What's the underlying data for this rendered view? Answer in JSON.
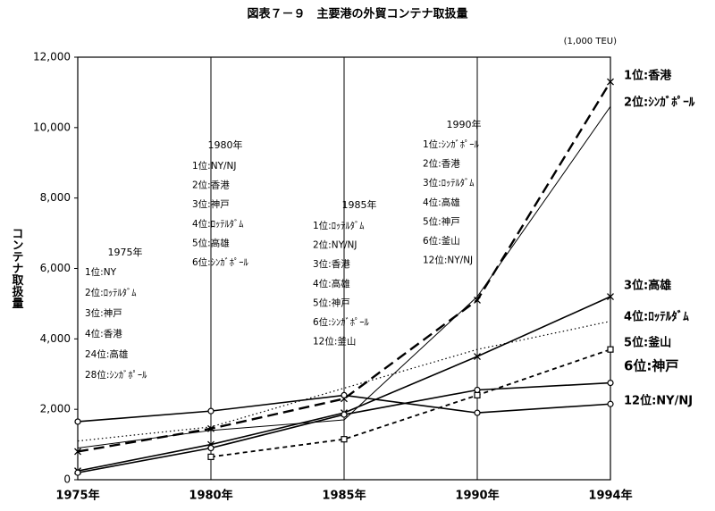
{
  "chart_data": {
    "type": "line",
    "title": "図表７－９　主要港の外貿コンテナ取扱量",
    "unit": "(1,000 TEU)",
    "y_label": "コンテナ取扱量",
    "categories": [
      "1975年",
      "1980年",
      "1985年",
      "1990年",
      "1994年"
    ],
    "ylim": [
      0,
      12000
    ],
    "yticks": [
      0,
      {
        "value": 2000,
        "label": "2,000"
      },
      {
        "value": 4000,
        "label": "4,000"
      },
      {
        "value": 6000,
        "label": "6,000"
      },
      {
        "value": 8000,
        "label": "8,000"
      },
      {
        "value": 10000,
        "label": "10,000"
      },
      {
        "value": 12000,
        "label": "12,000"
      }
    ],
    "grid": true,
    "series": [
      {
        "name": "1位:香港",
        "color": "#000000",
        "dash": "12 6",
        "width": 2.4,
        "marker": "x",
        "values": [
          800,
          1450,
          2300,
          5100,
          11300
        ]
      },
      {
        "name": "2位:ｼﾝｶﾞﾎﾟｰﾙ",
        "color": "#000000",
        "dash": "none",
        "width": 1,
        "marker": "none",
        "values": [
          900,
          1400,
          1700,
          5200,
          10600
        ]
      },
      {
        "name": "3位:高雄",
        "color": "#000000",
        "dash": "none",
        "width": 1.6,
        "marker": "x",
        "values": [
          250,
          1000,
          1900,
          3500,
          5200
        ]
      },
      {
        "name": "4位:ﾛｯﾃﾙﾀﾞﾑ",
        "color": "#000000",
        "dash": "1.5 3",
        "width": 1.2,
        "marker": "none",
        "values": [
          1100,
          1500,
          2600,
          3700,
          4500
        ]
      },
      {
        "name": "5位:釜山",
        "color": "#000000",
        "dash": "5 4",
        "width": 1.8,
        "marker": "square",
        "values": [
          null,
          650,
          1150,
          2400,
          3700
        ]
      },
      {
        "name": "6位:神戸",
        "color": "#000000",
        "dash": "none",
        "width": 1.6,
        "marker": "circle",
        "values": [
          200,
          900,
          1850,
          2550,
          2750
        ]
      },
      {
        "name": "12位:NY/NJ",
        "color": "#000000",
        "dash": "none",
        "width": 1.6,
        "marker": "circle",
        "values": [
          1650,
          1950,
          2400,
          1900,
          2150
        ]
      }
    ],
    "annotations": [
      {
        "title": "1975年",
        "lines": [
          "1位:NY",
          "2位:ﾛｯﾃﾙﾀﾞﾑ",
          "3位:神戸",
          "4位:香港",
          "24位:高雄",
          "28位:ｼﾝｶﾞﾎﾟｰﾙ"
        ]
      },
      {
        "title": "1980年",
        "lines": [
          "1位:NY/NJ",
          "2位:香港",
          "3位:神戸",
          "4位:ﾛｯﾃﾙﾀﾞﾑ",
          "5位:高雄",
          "6位:ｼﾝｶﾞﾎﾟｰﾙ"
        ]
      },
      {
        "title": "1985年",
        "lines": [
          "1位:ﾛｯﾃﾙﾀﾞﾑ",
          "2位:NY/NJ",
          "3位:香港",
          "4位:高雄",
          "5位:神戸",
          "6位:ｼﾝｶﾞﾎﾟｰﾙ",
          "12位:釜山"
        ]
      },
      {
        "title": "1990年",
        "lines": [
          "1位:ｼﾝｶﾞﾎﾟｰﾙ",
          "2位:香港",
          "3位:ﾛｯﾃﾙﾀﾞﾑ",
          "4位:高雄",
          "5位:神戸",
          "6位:釜山",
          "12位:NY/NJ"
        ]
      }
    ]
  }
}
